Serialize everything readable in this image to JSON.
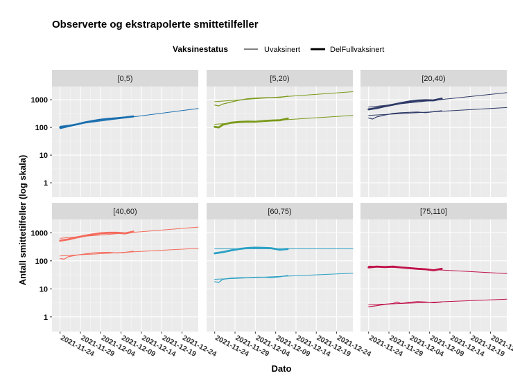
{
  "chart_data": {
    "type": "line",
    "title": "Observerte og ekstrapolerte smittetilfeller",
    "xlabel": "Dato",
    "ylabel": "Antall smittetilfeller (log skala)",
    "y_scale": "log10",
    "ylim": [
      0.3,
      3000
    ],
    "y_ticks": [
      1,
      10,
      100,
      1000
    ],
    "y_tick_labels": [
      "1",
      "10",
      "100",
      "1000"
    ],
    "x_range": [
      "2021-11-22",
      "2021-12-28"
    ],
    "x_ticks": [
      "2021-11-24",
      "2021-11-29",
      "2021-12-04",
      "2021-12-09",
      "2021-12-14",
      "2021-12-19",
      "2021-12-24"
    ],
    "x_tick_labels": [
      "2021-11-24",
      "2021-11-29",
      "2021-12-04",
      "2021-12-09",
      "2021-12-14",
      "2021-12-19",
      "2021-12-24"
    ],
    "grid": true,
    "legend": {
      "title": "Vaksinestatus",
      "position": "top",
      "entries": [
        {
          "label": "Uvaksinert",
          "line_width": "thin"
        },
        {
          "label": "DelFullvaksinert",
          "line_width": "thick"
        }
      ]
    },
    "facets": [
      {
        "label": "[0,5)",
        "color": "#1a6faf",
        "series": [
          {
            "group": "Uvaksinert",
            "kind": "observed",
            "x": [
              "2021-11-24",
              "2021-11-26",
              "2021-11-28",
              "2021-11-30",
              "2021-12-02",
              "2021-12-04",
              "2021-12-06",
              "2021-12-08",
              "2021-12-10",
              "2021-12-12"
            ],
            "y": [
              90,
              105,
              125,
              145,
              170,
              185,
              200,
              215,
              225,
              260
            ]
          },
          {
            "group": "Uvaksinert",
            "kind": "extrapolated",
            "x": [
              "2021-11-24",
              "2021-12-28"
            ],
            "y": [
              110,
              480
            ]
          },
          {
            "group": "DelFullvaksinert",
            "kind": "observed",
            "x": [
              "2021-11-24",
              "2021-11-26",
              "2021-11-28",
              "2021-11-30",
              "2021-12-02",
              "2021-12-04",
              "2021-12-06",
              "2021-12-08",
              "2021-12-10",
              "2021-12-12"
            ],
            "y": [
              100,
              112,
              128,
              150,
              172,
              190,
              205,
              215,
              230,
              250
            ]
          }
        ]
      },
      {
        "label": "[5,20)",
        "color": "#7a9a1a",
        "series": [
          {
            "group": "Uvaksinert",
            "kind": "observed",
            "x": [
              "2021-11-24",
              "2021-11-25",
              "2021-11-26",
              "2021-11-28",
              "2021-11-30",
              "2021-12-02",
              "2021-12-04",
              "2021-12-06",
              "2021-12-08",
              "2021-12-10",
              "2021-12-12"
            ],
            "y": [
              640,
              600,
              700,
              820,
              960,
              1080,
              1150,
              1180,
              1200,
              1210,
              1350
            ]
          },
          {
            "group": "Uvaksinert",
            "kind": "extrapolated",
            "x": [
              "2021-11-24",
              "2021-12-28"
            ],
            "y": [
              850,
              1950
            ]
          },
          {
            "group": "DelFullvaksinert",
            "kind": "observed",
            "x": [
              "2021-11-24",
              "2021-11-25",
              "2021-11-26",
              "2021-11-28",
              "2021-11-30",
              "2021-12-02",
              "2021-12-04",
              "2021-12-06",
              "2021-12-08",
              "2021-12-10",
              "2021-12-12"
            ],
            "y": [
              105,
              100,
              125,
              148,
              158,
              162,
              160,
              170,
              178,
              182,
              210
            ]
          },
          {
            "group": "DelFullvaksinert",
            "kind": "extrapolated",
            "x": [
              "2021-11-24",
              "2021-12-28"
            ],
            "y": [
              130,
              270
            ]
          }
        ]
      },
      {
        "label": "[20,40)",
        "color": "#2e3a66",
        "series": [
          {
            "group": "Uvaksinert",
            "kind": "observed",
            "x": [
              "2021-11-24",
              "2021-11-25",
              "2021-11-26",
              "2021-11-28",
              "2021-11-30",
              "2021-12-02",
              "2021-12-04",
              "2021-12-06",
              "2021-12-08",
              "2021-12-10",
              "2021-12-12"
            ],
            "y": [
              220,
              200,
              240,
              280,
              320,
              340,
              350,
              360,
              340,
              370,
              400
            ]
          },
          {
            "group": "Uvaksinert",
            "kind": "extrapolated",
            "x": [
              "2021-11-24",
              "2021-12-28"
            ],
            "y": [
              270,
              520
            ]
          },
          {
            "group": "DelFullvaksinert",
            "kind": "observed",
            "x": [
              "2021-11-24",
              "2021-11-26",
              "2021-11-28",
              "2021-11-30",
              "2021-12-02",
              "2021-12-04",
              "2021-12-06",
              "2021-12-08",
              "2021-12-10",
              "2021-12-12"
            ],
            "y": [
              450,
              500,
              580,
              660,
              760,
              860,
              930,
              960,
              950,
              1100
            ]
          },
          {
            "group": "DelFullvaksinert",
            "kind": "extrapolated",
            "x": [
              "2021-11-24",
              "2021-12-28"
            ],
            "y": [
              540,
              1800
            ]
          }
        ]
      },
      {
        "label": "[40,60)",
        "color": "#f46a5b",
        "series": [
          {
            "group": "Uvaksinert",
            "kind": "observed",
            "x": [
              "2021-11-24",
              "2021-11-25",
              "2021-11-26",
              "2021-11-28",
              "2021-11-30",
              "2021-12-02",
              "2021-12-04",
              "2021-12-06",
              "2021-12-08",
              "2021-12-10",
              "2021-12-12"
            ],
            "y": [
              120,
              115,
              140,
              160,
              175,
              190,
              200,
              200,
              190,
              200,
              220
            ]
          },
          {
            "group": "Uvaksinert",
            "kind": "extrapolated",
            "x": [
              "2021-11-24",
              "2021-12-28"
            ],
            "y": [
              150,
              280
            ]
          },
          {
            "group": "DelFullvaksinert",
            "kind": "observed",
            "x": [
              "2021-11-24",
              "2021-11-26",
              "2021-11-28",
              "2021-11-30",
              "2021-12-02",
              "2021-12-04",
              "2021-12-06",
              "2021-12-08",
              "2021-12-10",
              "2021-12-12"
            ],
            "y": [
              520,
              580,
              680,
              780,
              880,
              960,
              1000,
              1000,
              950,
              1100
            ]
          },
          {
            "group": "DelFullvaksinert",
            "kind": "extrapolated",
            "x": [
              "2021-11-24",
              "2021-12-28"
            ],
            "y": [
              640,
              1600
            ]
          }
        ]
      },
      {
        "label": "[60,75)",
        "color": "#2aa0c4",
        "series": [
          {
            "group": "Uvaksinert",
            "kind": "observed",
            "x": [
              "2021-11-24",
              "2021-11-25",
              "2021-11-26",
              "2021-11-28",
              "2021-11-30",
              "2021-12-02",
              "2021-12-04",
              "2021-12-06",
              "2021-12-08",
              "2021-12-10",
              "2021-12-12"
            ],
            "y": [
              18,
              17,
              22,
              24,
              25,
              25,
              26,
              26,
              25,
              27,
              30
            ]
          },
          {
            "group": "Uvaksinert",
            "kind": "extrapolated",
            "x": [
              "2021-11-24",
              "2021-12-28"
            ],
            "y": [
              22,
              36
            ]
          },
          {
            "group": "DelFullvaksinert",
            "kind": "observed",
            "x": [
              "2021-11-24",
              "2021-11-26",
              "2021-11-28",
              "2021-11-30",
              "2021-12-02",
              "2021-12-04",
              "2021-12-06",
              "2021-12-08",
              "2021-12-10",
              "2021-12-12"
            ],
            "y": [
              185,
              205,
              235,
              265,
              285,
              295,
              290,
              280,
              250,
              265
            ]
          },
          {
            "group": "DelFullvaksinert",
            "kind": "extrapolated",
            "x": [
              "2021-11-24",
              "2021-12-28"
            ],
            "y": [
              270,
              270
            ]
          }
        ]
      },
      {
        "label": "[75,110]",
        "color": "#c0124a",
        "series": [
          {
            "group": "Uvaksinert",
            "kind": "observed",
            "x": [
              "2021-11-24",
              "2021-11-26",
              "2021-11-28",
              "2021-11-30",
              "2021-12-01",
              "2021-12-02",
              "2021-12-04",
              "2021-12-06",
              "2021-12-08",
              "2021-12-10",
              "2021-12-12"
            ],
            "y": [
              2.3,
              2.5,
              2.8,
              3.0,
              3.4,
              3.0,
              3.3,
              3.5,
              3.4,
              3.2,
              3.4
            ]
          },
          {
            "group": "Uvaksinert",
            "kind": "extrapolated",
            "x": [
              "2021-11-24",
              "2021-12-28"
            ],
            "y": [
              2.7,
              4.3
            ]
          },
          {
            "group": "DelFullvaksinert",
            "kind": "observed",
            "x": [
              "2021-11-24",
              "2021-11-26",
              "2021-11-28",
              "2021-11-30",
              "2021-12-02",
              "2021-12-04",
              "2021-12-06",
              "2021-12-08",
              "2021-12-10",
              "2021-12-12"
            ],
            "y": [
              58,
              62,
              60,
              62,
              58,
              55,
              52,
              50,
              46,
              52
            ]
          },
          {
            "group": "DelFullvaksinert",
            "kind": "extrapolated",
            "x": [
              "2021-11-24",
              "2021-12-28"
            ],
            "y": [
              65,
              35
            ]
          }
        ]
      }
    ]
  }
}
